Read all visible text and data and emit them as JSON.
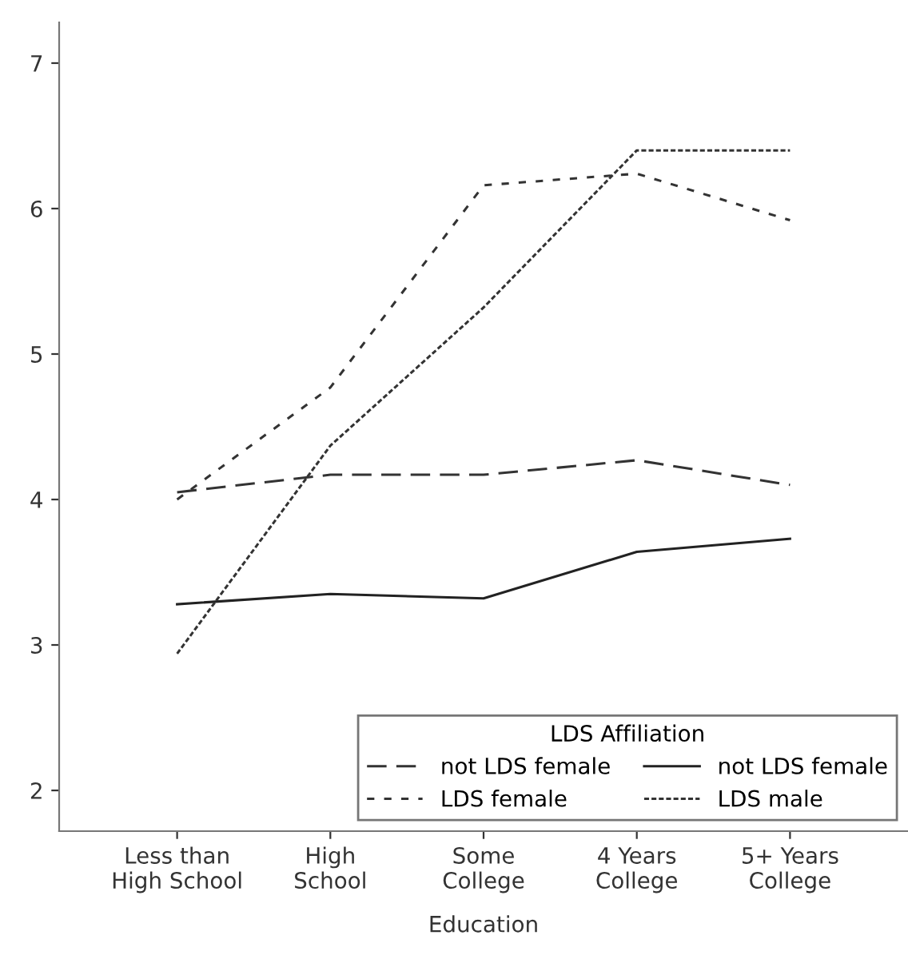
{
  "chart_data": {
    "type": "line",
    "xlabel": "Education",
    "legend_title": "LDS Affiliation",
    "legend": "bottom right",
    "grid": false,
    "marker": "none",
    "categories": [
      "Less than\nHigh School",
      "High\nSchool",
      "Some\nCollege",
      "4 Years\nCollege",
      "5+ Years\nCollege"
    ],
    "ylim": [
      1.72,
      7.28
    ],
    "yticks": [
      2,
      3,
      4,
      5,
      6,
      7
    ],
    "series": [
      {
        "name": "not LDS female",
        "color": "#333333",
        "line_style": "longdash",
        "values": [
          4.05,
          4.17,
          4.17,
          4.27,
          4.1
        ]
      },
      {
        "name": "LDS female",
        "color": "#333333",
        "line_style": "dashed",
        "values": [
          4.0,
          4.77,
          6.16,
          6.24,
          5.92
        ]
      },
      {
        "name": "not LDS female",
        "color": "#222222",
        "line_style": "solid",
        "values": [
          3.28,
          3.35,
          3.32,
          3.64,
          3.73
        ]
      },
      {
        "name": "LDS male",
        "color": "#333333",
        "line_style": "dotted",
        "values": [
          2.94,
          4.37,
          5.32,
          6.4,
          6.4
        ]
      }
    ]
  }
}
